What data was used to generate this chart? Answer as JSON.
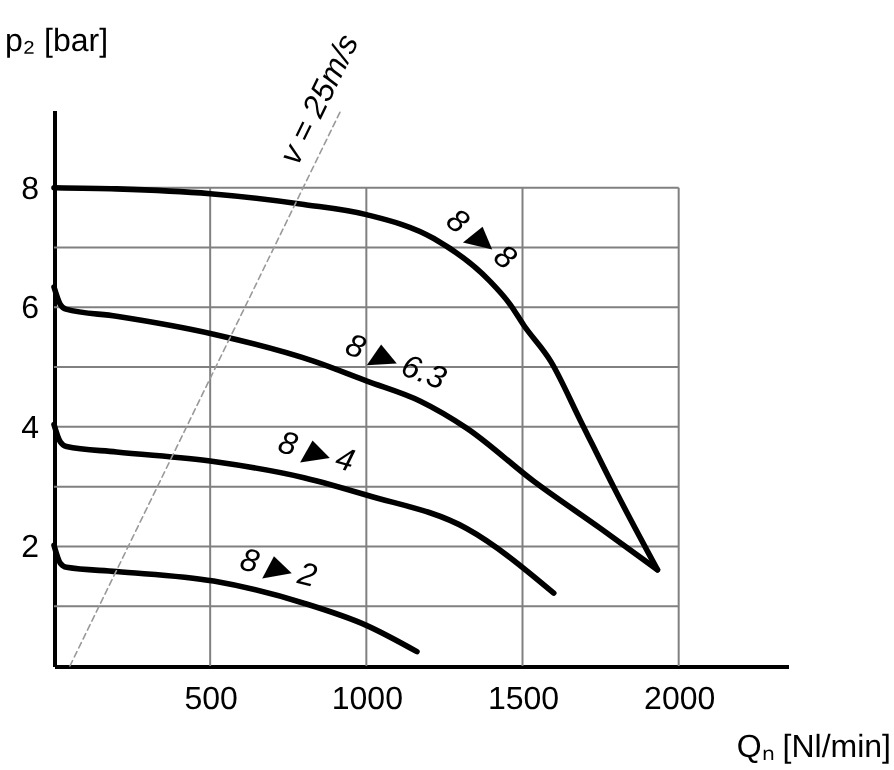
{
  "chart_data": {
    "type": "line",
    "xlabel": "Qₙ [Nl/min]",
    "ylabel": "p₂ [bar]",
    "xlim": [
      0,
      2350
    ],
    "ylim": [
      0,
      9.3
    ],
    "xticks": [
      500,
      1000,
      1500,
      2000
    ],
    "yticks": [
      {
        "value": 1,
        "label": null
      },
      2,
      {
        "value": 3,
        "label": null
      },
      4,
      {
        "value": 5,
        "label": null
      },
      6,
      {
        "value": 7,
        "label": null
      },
      8
    ],
    "grid": true,
    "marker": "none",
    "line_style": "solid",
    "series": [
      {
        "name": "8 ▶ 8",
        "color": "#000000",
        "x": [
          0,
          200,
          500,
          800,
          1000,
          1216,
          1393,
          1460,
          1504,
          1590,
          1686,
          1793,
          1932
        ],
        "values": [
          8,
          7.98,
          7.9,
          7.72,
          7.55,
          7.15,
          6.45,
          6.05,
          5.7,
          5.1,
          4.1,
          2.98,
          1.61
        ]
      },
      {
        "name": "8 ▶ 6.3",
        "color": "#000000",
        "x": [
          0,
          20,
          38,
          200,
          511,
          831,
          1000,
          1173,
          1321,
          1536,
          1750,
          1932
        ],
        "values": [
          6.34,
          6.05,
          5.97,
          5.85,
          5.55,
          5.1,
          4.77,
          4.43,
          3.98,
          3.09,
          2.3,
          1.61
        ]
      },
      {
        "name": "8 ▶ 4",
        "color": "#000000",
        "x": [
          0,
          20,
          40,
          200,
          511,
          800,
          1000,
          1321,
          1600
        ],
        "values": [
          4.04,
          3.75,
          3.67,
          3.58,
          3.42,
          3.15,
          2.86,
          2.3,
          1.22
        ]
      },
      {
        "name": "8 ▶ 2",
        "color": "#000000",
        "x": [
          0,
          20,
          40,
          200,
          511,
          800,
          1000,
          1162
        ],
        "values": [
          2.02,
          1.72,
          1.65,
          1.58,
          1.42,
          1.05,
          0.68,
          0.24
        ]
      },
      {
        "name": "v = 25m/s",
        "color": "#999999",
        "line_style": "dashed",
        "x": [
          51,
          919
        ],
        "values": [
          0,
          9.3
        ]
      }
    ]
  }
}
